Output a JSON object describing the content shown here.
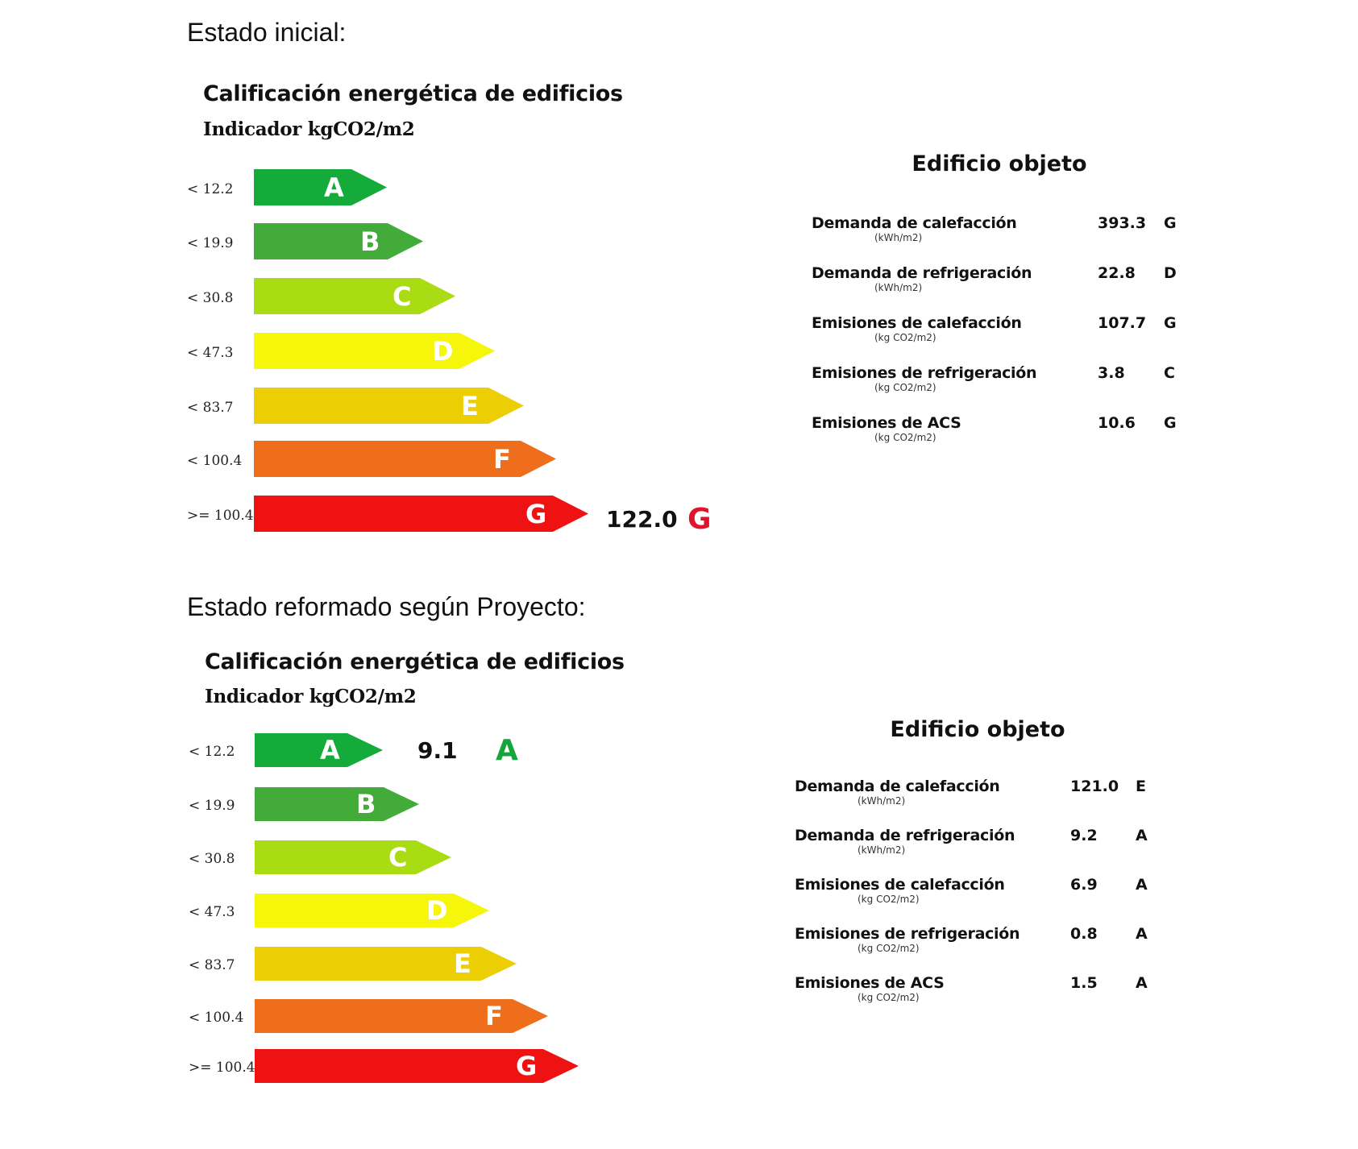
{
  "sections": [
    {
      "heading": "Estado inicial:",
      "chart_title": "Calificación energética de edificios",
      "chart_subtitle": "Indicador kgCO2/m2",
      "result": {
        "value": "122.0",
        "letter": "G",
        "color": "#e0142c"
      },
      "objeto": {
        "title": "Edificio objeto",
        "rows": [
          {
            "label": "Demanda de calefacción",
            "unit": "(kWh/m2)",
            "value": "393.3",
            "rating": "G"
          },
          {
            "label": "Demanda de refrigeración",
            "unit": "(kWh/m2)",
            "value": "22.8",
            "rating": "D"
          },
          {
            "label": "Emisiones de calefacción",
            "unit": "(kg CO2/m2)",
            "value": "107.7",
            "rating": "G"
          },
          {
            "label": "Emisiones de refrigeración",
            "unit": "(kg CO2/m2)",
            "value": "3.8",
            "rating": "C"
          },
          {
            "label": "Emisiones de ACS",
            "unit": "(kg CO2/m2)",
            "value": "10.6",
            "rating": "G"
          }
        ]
      }
    },
    {
      "heading": "Estado reformado según Proyecto:",
      "chart_title": "Calificación energética de edificios",
      "chart_subtitle": "Indicador kgCO2/m2",
      "result": {
        "value": "9.1",
        "letter": "A",
        "color": "#16a53c"
      },
      "objeto": {
        "title": "Edificio objeto",
        "rows": [
          {
            "label": "Demanda de calefacción",
            "unit": "(kWh/m2)",
            "value": "121.0",
            "rating": "E"
          },
          {
            "label": "Demanda de refrigeración",
            "unit": "(kWh/m2)",
            "value": "9.2",
            "rating": "A"
          },
          {
            "label": "Emisiones de calefacción",
            "unit": "(kg CO2/m2)",
            "value": "6.9",
            "rating": "A"
          },
          {
            "label": "Emisiones de refrigeración",
            "unit": "(kg CO2/m2)",
            "value": "0.8",
            "rating": "A"
          },
          {
            "label": "Emisiones de ACS",
            "unit": "(kg CO2/m2)",
            "value": "1.5",
            "rating": "A"
          }
        ]
      }
    }
  ],
  "scale": [
    {
      "letter": "A",
      "range": "< 12.2",
      "color": "#14ab3a"
    },
    {
      "letter": "B",
      "range": "< 19.9",
      "color": "#42ab3a"
    },
    {
      "letter": "C",
      "range": "< 30.8",
      "color": "#aadc14"
    },
    {
      "letter": "D",
      "range": "< 47.3",
      "color": "#f6f60a"
    },
    {
      "letter": "E",
      "range": "< 83.7",
      "color": "#ecce04"
    },
    {
      "letter": "F",
      "range": "< 100.4",
      "color": "#ee6e1c"
    },
    {
      "letter": "G",
      "range": ">= 100.4",
      "color": "#ee1212"
    }
  ],
  "chart_data": [
    {
      "type": "bar",
      "title": "Calificación energética de edificios",
      "subtitle": "Indicador kgCO2/m2",
      "context": "Estado inicial",
      "categories": [
        "A",
        "B",
        "C",
        "D",
        "E",
        "F",
        "G"
      ],
      "thresholds": [
        "< 12.2",
        "< 19.9",
        "< 30.8",
        "< 47.3",
        "< 83.7",
        "< 100.4",
        ">= 100.4"
      ],
      "result": {
        "value": 122.0,
        "class": "G"
      },
      "table": {
        "title": "Edificio objeto",
        "rows": [
          [
            "Demanda de calefacción (kWh/m2)",
            393.3,
            "G"
          ],
          [
            "Demanda de refrigeración (kWh/m2)",
            22.8,
            "D"
          ],
          [
            "Emisiones de calefacción (kg CO2/m2)",
            107.7,
            "G"
          ],
          [
            "Emisiones de refrigeración (kg CO2/m2)",
            3.8,
            "C"
          ],
          [
            "Emisiones de ACS (kg CO2/m2)",
            10.6,
            "G"
          ]
        ]
      }
    },
    {
      "type": "bar",
      "title": "Calificación energética de edificios",
      "subtitle": "Indicador kgCO2/m2",
      "context": "Estado reformado según Proyecto",
      "categories": [
        "A",
        "B",
        "C",
        "D",
        "E",
        "F",
        "G"
      ],
      "thresholds": [
        "< 12.2",
        "< 19.9",
        "< 30.8",
        "< 47.3",
        "< 83.7",
        "< 100.4",
        ">= 100.4"
      ],
      "result": {
        "value": 9.1,
        "class": "A"
      },
      "table": {
        "title": "Edificio objeto",
        "rows": [
          [
            "Demanda de calefacción (kWh/m2)",
            121.0,
            "E"
          ],
          [
            "Demanda de refrigeración (kWh/m2)",
            9.2,
            "A"
          ],
          [
            "Emisiones de calefacción (kg CO2/m2)",
            6.9,
            "A"
          ],
          [
            "Emisiones de refrigeración (kg CO2/m2)",
            0.8,
            "A"
          ],
          [
            "Emisiones de ACS (kg CO2/m2)",
            1.5,
            "A"
          ]
        ]
      }
    }
  ]
}
